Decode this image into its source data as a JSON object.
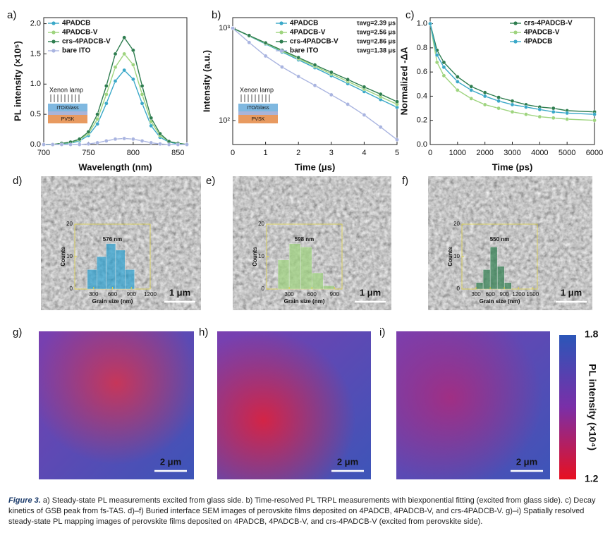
{
  "panel_labels": [
    "a)",
    "b)",
    "c)",
    "d)",
    "e)",
    "f)",
    "g)",
    "h)",
    "i)"
  ],
  "insets": {
    "lamp": "Xenon lamp",
    "top_layer": "ITO/Glass",
    "bottom_layer": "PVSK"
  },
  "sem": {
    "scale_bar": "1 μm"
  },
  "maps": {
    "scale_bar": "2 μm",
    "colorbar": {
      "label": "PL intensity (×10⁴)",
      "range": [
        1.2,
        1.8
      ]
    }
  },
  "caption": {
    "figure": "Figure 3.",
    "text": "a) Steady-state PL measurements excited from glass side. b) Time-resolved PL TRPL measurements with biexponential fitting (excited from glass side). c) Decay kinetics of GSB peak from fs-TAS. d)–f) Buried interface SEM images of perovskite films deposited on 4PADCB, 4PADCB-V, and crs-4PADCB-V. g)–i) Spatially resolved steady-state PL mapping images of perovskite films deposited on 4PADCB, 4PADCB-V, and crs-4PADCB-V (excited from perovskite side)."
  },
  "chart_data": [
    {
      "type": "line",
      "x_label": "Wavelength (nm)",
      "y_label": "PL intensity (×10⁵)",
      "legend": "upper left",
      "x": [
        700,
        710,
        720,
        730,
        740,
        750,
        760,
        770,
        780,
        790,
        800,
        810,
        820,
        830,
        840,
        850,
        860
      ],
      "xlim": [
        700,
        860
      ],
      "xticks": [
        700,
        750,
        800,
        850
      ],
      "ylim": [
        0,
        2.1
      ],
      "yticks": [
        {
          "value": 0,
          "label": "0.0"
        },
        {
          "value": 0.5,
          "label": "0.5"
        },
        {
          "value": 1,
          "label": "1.0"
        },
        {
          "value": 1.5,
          "label": "1.5"
        },
        {
          "value": 2,
          "label": "2.0"
        }
      ],
      "series": [
        {
          "name": "4PADCB",
          "color": "#3aa8c8",
          "values": [
            0,
            0,
            0.01,
            0.02,
            0.06,
            0.15,
            0.34,
            0.68,
            1.05,
            1.23,
            1.08,
            0.68,
            0.31,
            0.12,
            0.04,
            0.01,
            0
          ]
        },
        {
          "name": "4PADCB-V",
          "color": "#9ed47e",
          "values": [
            0,
            0,
            0.02,
            0.03,
            0.08,
            0.18,
            0.42,
            0.83,
            1.28,
            1.5,
            1.32,
            0.83,
            0.38,
            0.15,
            0.05,
            0.02,
            0
          ]
        },
        {
          "name": "crs-4PADCB-V",
          "color": "#2e7d4f",
          "values": [
            0,
            0,
            0.02,
            0.04,
            0.09,
            0.21,
            0.5,
            0.97,
            1.5,
            1.77,
            1.56,
            0.97,
            0.44,
            0.18,
            0.05,
            0.02,
            0
          ]
        },
        {
          "name": "bare ITO",
          "color": "#a9b4e0",
          "values": [
            0,
            0,
            0,
            0,
            0,
            0.01,
            0.03,
            0.06,
            0.09,
            0.1,
            0.09,
            0.06,
            0.03,
            0.01,
            0,
            0,
            0
          ]
        }
      ]
    },
    {
      "type": "line",
      "x_label": "Time (μs)",
      "y_label": "Intensity (a.u.)",
      "legend": "upper right",
      "log_y": true,
      "x": [
        0,
        0.5,
        1,
        1.5,
        2,
        2.5,
        3,
        3.5,
        4,
        4.5,
        5
      ],
      "xlim": [
        0,
        5
      ],
      "xticks": [
        0,
        1,
        2,
        3,
        4,
        5
      ],
      "ylim": [
        55,
        1300
      ],
      "yticks": [
        {
          "value": 100,
          "label": "10²"
        },
        {
          "value": 1000,
          "label": "10³"
        }
      ],
      "series": [
        {
          "name": "4PADCB",
          "color": "#3aa8c8",
          "annotation": "τavg=2.39 μs",
          "values": [
            1000,
            821,
            674,
            553,
            454,
            373,
            306,
            251,
            206,
            169,
            139
          ]
        },
        {
          "name": "4PADCB-V",
          "color": "#9ed47e",
          "annotation": "τavg=2.56 μs",
          "values": [
            1000,
            827,
            684,
            566,
            468,
            387,
            320,
            265,
            219,
            181,
            150
          ]
        },
        {
          "name": "crs-4PADCB-V",
          "color": "#2e7d4f",
          "annotation": "τavg=2.86 μs",
          "values": [
            1000,
            833,
            693,
            577,
            481,
            400,
            333,
            278,
            231,
            193,
            160
          ]
        },
        {
          "name": "bare ITO",
          "color": "#a9b4e0",
          "annotation": "τavg=1.38 μs",
          "values": [
            1000,
            700,
            500,
            380,
            300,
            240,
            190,
            150,
            115,
            85,
            62
          ]
        }
      ]
    },
    {
      "type": "line",
      "x_label": "Time (ps)",
      "y_label": "Normalized -ΔA",
      "legend": "upper right",
      "x": [
        0,
        250,
        500,
        1000,
        1500,
        2000,
        2500,
        3000,
        3500,
        4000,
        4500,
        5000,
        6000
      ],
      "xlim": [
        0,
        6000
      ],
      "xticks": [
        0,
        1000,
        2000,
        3000,
        4000,
        5000,
        6000
      ],
      "ylim": [
        0,
        1.05
      ],
      "yticks": [
        {
          "value": 0,
          "label": "0.0"
        },
        {
          "value": 0.2,
          "label": "0.2"
        },
        {
          "value": 0.4,
          "label": "0.4"
        },
        {
          "value": 0.6,
          "label": "0.6"
        },
        {
          "value": 0.8,
          "label": "0.8"
        },
        {
          "value": 1,
          "label": "1.0"
        }
      ],
      "series": [
        {
          "name": "crs-4PADCB-V",
          "color": "#2e7d4f",
          "values": [
            1.0,
            0.78,
            0.68,
            0.56,
            0.48,
            0.43,
            0.39,
            0.36,
            0.33,
            0.31,
            0.3,
            0.28,
            0.27
          ]
        },
        {
          "name": "4PADCB-V",
          "color": "#9ed47e",
          "values": [
            1.0,
            0.68,
            0.57,
            0.45,
            0.38,
            0.33,
            0.3,
            0.27,
            0.25,
            0.23,
            0.22,
            0.21,
            0.2
          ]
        },
        {
          "name": "4PADCB",
          "color": "#3aa8c8",
          "values": [
            1.0,
            0.74,
            0.64,
            0.52,
            0.45,
            0.4,
            0.36,
            0.33,
            0.31,
            0.29,
            0.27,
            0.26,
            0.25
          ]
        }
      ]
    },
    {
      "type": "histogram",
      "x_label": "Grain size (nm)",
      "y_label": "Counts",
      "annotation": "576 nm",
      "color": "#2a9fd0",
      "bins": [
        200,
        350,
        500,
        650,
        800,
        950
      ],
      "values": [
        6,
        10,
        14,
        12,
        6
      ],
      "xlim": [
        0,
        1200
      ],
      "xticks": [
        300,
        600,
        900,
        1200
      ],
      "ylim": [
        0,
        20
      ],
      "yticks": [
        0,
        10,
        20
      ]
    },
    {
      "type": "histogram",
      "x_label": "Grain size (nm)",
      "y_label": "Counts",
      "annotation": "598 nm",
      "color": "#9ed47e",
      "bins": [
        150,
        300,
        450,
        600,
        750,
        900
      ],
      "values": [
        9,
        14,
        13,
        5,
        1
      ],
      "xlim": [
        0,
        1000
      ],
      "xticks": [
        300,
        600,
        900
      ],
      "ylim": [
        0,
        20
      ],
      "yticks": [
        0,
        10,
        20
      ]
    },
    {
      "type": "histogram",
      "x_label": "Grain size (nm)",
      "y_label": "Counts",
      "annotation": "550 nm",
      "color": "#2e7d4f",
      "bins": [
        300,
        450,
        600,
        750,
        900,
        1050
      ],
      "values": [
        2,
        6,
        13,
        7,
        2
      ],
      "xlim": [
        0,
        1600
      ],
      "xticks": [
        300,
        600,
        900,
        1200,
        1500
      ],
      "ylim": [
        0,
        20
      ],
      "yticks": [
        0,
        10,
        20
      ]
    }
  ]
}
